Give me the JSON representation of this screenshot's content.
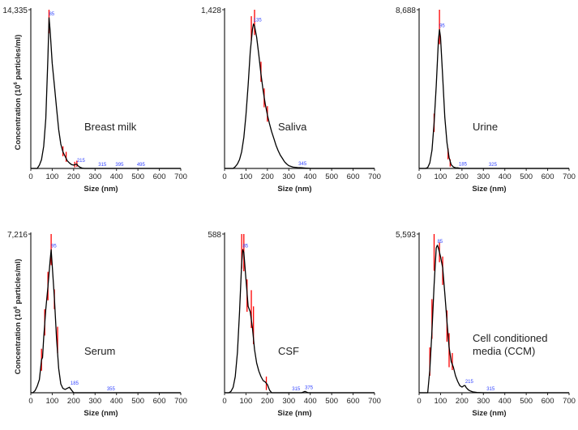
{
  "chart_data": {
    "type": "line",
    "shared": {
      "xlabel": "Size (nm)",
      "ylabel_main": "Concentration (10",
      "ylabel_sup": "6",
      "ylabel_tail": " particles/ml)",
      "xlim": [
        0,
        700
      ],
      "xticks": [
        0,
        100,
        200,
        300,
        400,
        500,
        600,
        700
      ],
      "grid": false,
      "line_color": "#000000",
      "error_color": "#ff0000",
      "peak_label_color": "#3344ff"
    },
    "panels": [
      {
        "title": "Breast milk",
        "ymax_label": "14,335",
        "ylim": [
          0,
          14335
        ],
        "show_ylabel": true,
        "peak_labels": [
          [
            85,
            13600,
            "85"
          ],
          [
            215,
            350,
            "215"
          ],
          [
            315,
            0,
            "315"
          ],
          [
            395,
            0,
            "395"
          ],
          [
            495,
            0,
            "495"
          ]
        ],
        "points": [
          [
            0,
            0
          ],
          [
            30,
            0
          ],
          [
            40,
            300
          ],
          [
            50,
            800
          ],
          [
            60,
            2000
          ],
          [
            70,
            4500
          ],
          [
            80,
            10000
          ],
          [
            85,
            13600
          ],
          [
            90,
            12500
          ],
          [
            100,
            9500
          ],
          [
            110,
            7500
          ],
          [
            120,
            5500
          ],
          [
            130,
            3500
          ],
          [
            140,
            2200
          ],
          [
            150,
            1500
          ],
          [
            160,
            1100
          ],
          [
            170,
            700
          ],
          [
            180,
            500
          ],
          [
            190,
            350
          ],
          [
            200,
            300
          ],
          [
            210,
            380
          ],
          [
            215,
            380
          ],
          [
            220,
            250
          ],
          [
            230,
            100
          ],
          [
            240,
            30
          ],
          [
            250,
            0
          ],
          [
            700,
            0
          ]
        ],
        "error_bars": [
          [
            85,
            12200,
            14335
          ],
          [
            150,
            1100,
            2000
          ],
          [
            165,
            600,
            1500
          ],
          [
            205,
            100,
            600
          ],
          [
            215,
            150,
            700
          ]
        ]
      },
      {
        "title": "Saliva",
        "ymax_label": "1,428",
        "ylim": [
          0,
          1428
        ],
        "show_ylabel": false,
        "peak_labels": [
          [
            135,
            1300,
            "135"
          ],
          [
            345,
            8,
            "345"
          ]
        ],
        "points": [
          [
            0,
            0
          ],
          [
            40,
            0
          ],
          [
            50,
            15
          ],
          [
            60,
            40
          ],
          [
            70,
            80
          ],
          [
            80,
            150
          ],
          [
            90,
            280
          ],
          [
            100,
            480
          ],
          [
            110,
            750
          ],
          [
            120,
            1050
          ],
          [
            130,
            1250
          ],
          [
            135,
            1300
          ],
          [
            140,
            1280
          ],
          [
            150,
            1180
          ],
          [
            160,
            1020
          ],
          [
            170,
            850
          ],
          [
            180,
            700
          ],
          [
            190,
            580
          ],
          [
            200,
            480
          ],
          [
            210,
            400
          ],
          [
            220,
            330
          ],
          [
            230,
            270
          ],
          [
            240,
            210
          ],
          [
            250,
            160
          ],
          [
            260,
            120
          ],
          [
            270,
            90
          ],
          [
            280,
            60
          ],
          [
            290,
            40
          ],
          [
            300,
            25
          ],
          [
            320,
            12
          ],
          [
            340,
            8
          ],
          [
            360,
            6
          ],
          [
            380,
            3
          ],
          [
            400,
            0
          ],
          [
            700,
            0
          ]
        ],
        "error_bars": [
          [
            125,
            1150,
            1370
          ],
          [
            140,
            1200,
            1428
          ],
          [
            170,
            780,
            960
          ],
          [
            185,
            550,
            720
          ],
          [
            200,
            420,
            560
          ]
        ]
      },
      {
        "title": "Urine",
        "ymax_label": "8,688",
        "ylim": [
          0,
          8688
        ],
        "show_ylabel": false,
        "peak_labels": [
          [
            95,
            7600,
            "95"
          ],
          [
            185,
            30,
            "185"
          ],
          [
            325,
            0,
            "325"
          ]
        ],
        "points": [
          [
            0,
            0
          ],
          [
            30,
            0
          ],
          [
            40,
            50
          ],
          [
            50,
            300
          ],
          [
            60,
            1000
          ],
          [
            70,
            2500
          ],
          [
            80,
            4500
          ],
          [
            90,
            7000
          ],
          [
            95,
            7600
          ],
          [
            100,
            7200
          ],
          [
            110,
            5000
          ],
          [
            120,
            2800
          ],
          [
            130,
            1400
          ],
          [
            140,
            600
          ],
          [
            150,
            200
          ],
          [
            160,
            80
          ],
          [
            170,
            40
          ],
          [
            180,
            30
          ],
          [
            190,
            10
          ],
          [
            200,
            0
          ],
          [
            700,
            0
          ]
        ],
        "error_bars": [
          [
            95,
            6800,
            8688
          ],
          [
            70,
            2000,
            3000
          ],
          [
            135,
            500,
            1100
          ],
          [
            145,
            100,
            500
          ]
        ]
      },
      {
        "title": "Serum",
        "ymax_label": "7,216",
        "ylim": [
          0,
          7216
        ],
        "show_ylabel": true,
        "peak_labels": [
          [
            95,
            6500,
            "95"
          ],
          [
            185,
            250,
            "185"
          ],
          [
            355,
            0,
            "355"
          ]
        ],
        "points": [
          [
            0,
            0
          ],
          [
            10,
            0
          ],
          [
            20,
            100
          ],
          [
            30,
            300
          ],
          [
            40,
            600
          ],
          [
            50,
            1500
          ],
          [
            55,
            1600
          ],
          [
            60,
            2500
          ],
          [
            70,
            3800
          ],
          [
            80,
            4800
          ],
          [
            90,
            6000
          ],
          [
            95,
            6500
          ],
          [
            100,
            5800
          ],
          [
            110,
            4300
          ],
          [
            120,
            2500
          ],
          [
            130,
            1100
          ],
          [
            140,
            400
          ],
          [
            150,
            200
          ],
          [
            160,
            150
          ],
          [
            170,
            200
          ],
          [
            180,
            250
          ],
          [
            190,
            120
          ],
          [
            200,
            0
          ],
          [
            700,
            0
          ]
        ],
        "error_bars": [
          [
            50,
            1000,
            2000
          ],
          [
            65,
            2600,
            3800
          ],
          [
            80,
            4200,
            5500
          ],
          [
            95,
            5800,
            7216
          ],
          [
            110,
            3800,
            4700
          ],
          [
            125,
            1800,
            3000
          ]
        ]
      },
      {
        "title": "CSF",
        "ymax_label": "588",
        "ylim": [
          0,
          588
        ],
        "show_ylabel": false,
        "peak_labels": [
          [
            85,
            530,
            "85"
          ],
          [
            315,
            0,
            "315"
          ],
          [
            375,
            5,
            "375"
          ]
        ],
        "points": [
          [
            0,
            0
          ],
          [
            20,
            0
          ],
          [
            30,
            5
          ],
          [
            40,
            20
          ],
          [
            50,
            60
          ],
          [
            60,
            150
          ],
          [
            70,
            300
          ],
          [
            80,
            480
          ],
          [
            85,
            530
          ],
          [
            90,
            520
          ],
          [
            100,
            420
          ],
          [
            110,
            320
          ],
          [
            120,
            300
          ],
          [
            130,
            240
          ],
          [
            140,
            160
          ],
          [
            150,
            110
          ],
          [
            160,
            80
          ],
          [
            170,
            60
          ],
          [
            180,
            45
          ],
          [
            190,
            40
          ],
          [
            200,
            30
          ],
          [
            210,
            10
          ],
          [
            220,
            0
          ],
          [
            360,
            0
          ],
          [
            375,
            5
          ],
          [
            390,
            0
          ],
          [
            700,
            0
          ]
        ],
        "error_bars": [
          [
            80,
            460,
            588
          ],
          [
            90,
            450,
            588
          ],
          [
            105,
            300,
            420
          ],
          [
            125,
            240,
            380
          ],
          [
            135,
            180,
            320
          ],
          [
            195,
            10,
            60
          ]
        ]
      },
      {
        "title": "Cell conditioned\nmedia (CCM)",
        "ymax_label": "5,593",
        "ylim": [
          0,
          5593
        ],
        "show_ylabel": false,
        "peak_labels": [
          [
            85,
            5200,
            "85"
          ],
          [
            215,
            250,
            "215"
          ],
          [
            315,
            0,
            "315"
          ]
        ],
        "points": [
          [
            0,
            0
          ],
          [
            40,
            0
          ],
          [
            50,
            800
          ],
          [
            60,
            2200
          ],
          [
            70,
            3800
          ],
          [
            80,
            5100
          ],
          [
            85,
            5200
          ],
          [
            90,
            5100
          ],
          [
            100,
            4800
          ],
          [
            110,
            4400
          ],
          [
            120,
            3500
          ],
          [
            130,
            2500
          ],
          [
            140,
            1600
          ],
          [
            150,
            1100
          ],
          [
            160,
            900
          ],
          [
            170,
            600
          ],
          [
            180,
            400
          ],
          [
            190,
            250
          ],
          [
            200,
            200
          ],
          [
            210,
            250
          ],
          [
            215,
            250
          ],
          [
            220,
            180
          ],
          [
            230,
            100
          ],
          [
            240,
            60
          ],
          [
            250,
            30
          ],
          [
            270,
            10
          ],
          [
            300,
            0
          ],
          [
            700,
            0
          ]
        ],
        "error_bars": [
          [
            50,
            600,
            1600
          ],
          [
            60,
            1900,
            3300
          ],
          [
            70,
            4300,
            5593
          ],
          [
            95,
            4600,
            5300
          ],
          [
            110,
            3800,
            4800
          ],
          [
            130,
            1800,
            2900
          ],
          [
            140,
            900,
            2100
          ],
          [
            155,
            800,
            1400
          ]
        ]
      }
    ]
  }
}
